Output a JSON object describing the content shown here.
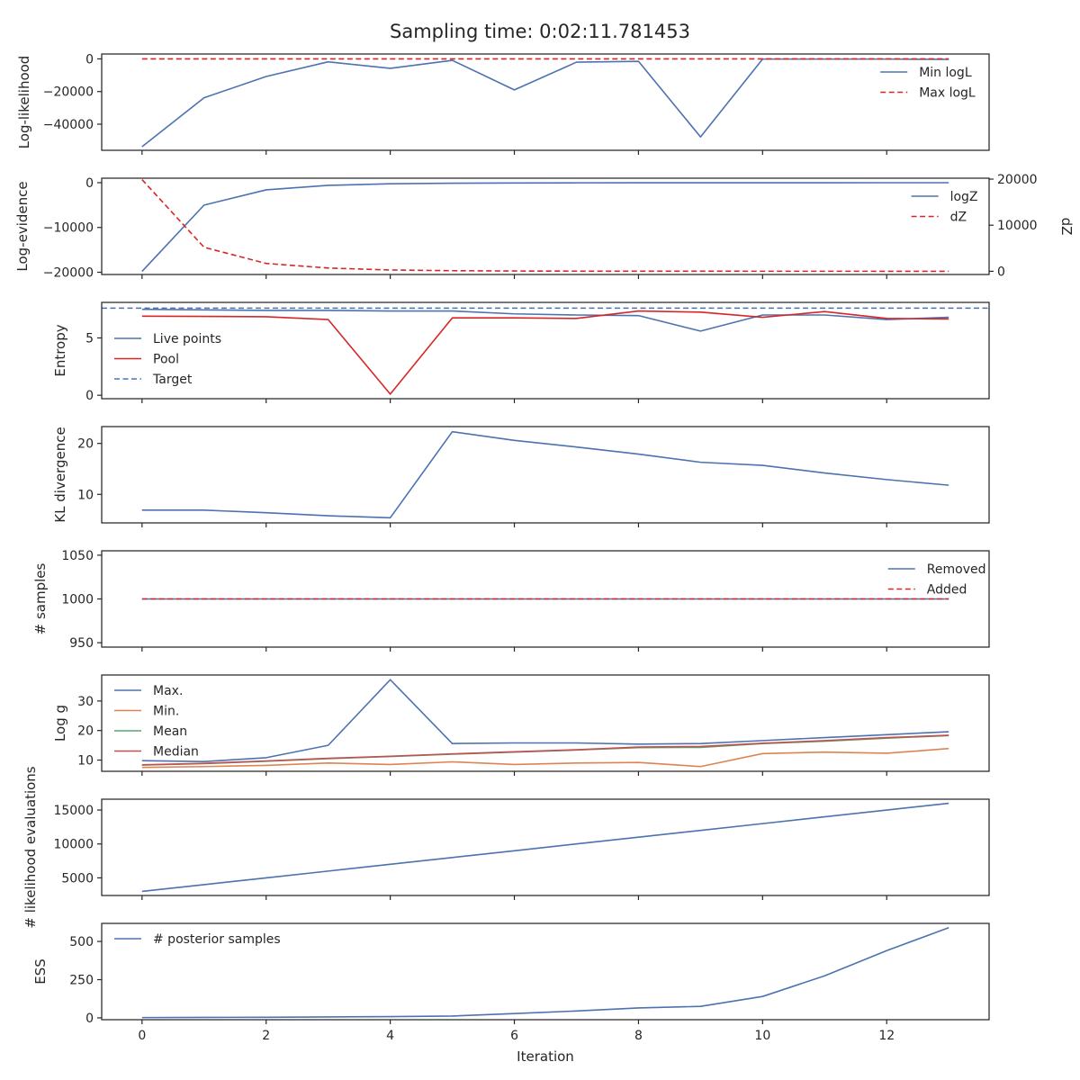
{
  "title": "Sampling time: 0:02:11.781453",
  "colors": {
    "blue": "#4c72b0",
    "red": "#d62728",
    "orange": "#dd8452",
    "green": "#55a868",
    "median_red": "#c44e52",
    "text": "#262626"
  },
  "chart_data": {
    "type": "line",
    "xlabel": "Iteration",
    "xlim": [
      -0.65,
      13.65
    ],
    "xticks": [
      0,
      2,
      4,
      6,
      8,
      10,
      12
    ],
    "x": [
      0,
      1,
      2,
      3,
      4,
      5,
      6,
      7,
      8,
      9,
      10,
      11,
      12,
      13
    ],
    "panels": [
      {
        "ylabel": "Log-likelihood",
        "ylim": [
          -56000,
          3000
        ],
        "yticks": [
          0,
          -20000,
          -40000
        ],
        "ytick_labels": [
          "0",
          "−20000",
          "−40000"
        ],
        "legend_position": "upper-right",
        "series": [
          {
            "name": "Min logL",
            "style": "solid",
            "color": "#4c72b0",
            "values": [
              -53800,
              -23800,
              -10800,
              -1800,
              -5800,
              -900,
              -19000,
              -2000,
              -1500,
              -47800,
              -100,
              -100,
              -100,
              -300
            ]
          },
          {
            "name": "Max logL",
            "style": "dashed",
            "color": "#d62728",
            "values": [
              0,
              0,
              0,
              0,
              0,
              0,
              0,
              0,
              0,
              0,
              0,
              0,
              0,
              0
            ]
          }
        ]
      },
      {
        "ylabel": "Log-evidence",
        "ylim": [
          -20500,
          1000
        ],
        "yticks": [
          0,
          -10000,
          -20000
        ],
        "ytick_labels": [
          "0",
          "−10000",
          "−20000"
        ],
        "y2label": "dZ",
        "y2lim": [
          -700,
          20200
        ],
        "y2ticks": [
          0,
          10000,
          20000
        ],
        "y2tick_labels": [
          "0",
          "10000",
          "20000"
        ],
        "legend_position": "upper-right",
        "series": [
          {
            "name": "logZ",
            "style": "solid",
            "color": "#4c72b0",
            "axis": "left",
            "values": [
              -19800,
              -5000,
              -1600,
              -600,
              -250,
              -120,
              -60,
              -30,
              -20,
              -15,
              -10,
              -8,
              -6,
              -5
            ]
          },
          {
            "name": "dZ",
            "style": "dashed",
            "color": "#d62728",
            "axis": "right",
            "values": [
              19900,
              5200,
              1700,
              700,
              280,
              130,
              60,
              30,
              20,
              15,
              10,
              8,
              6,
              5
            ]
          }
        ]
      },
      {
        "ylabel": "Entropy",
        "ylim": [
          -0.3,
          8.1
        ],
        "yticks": [
          0,
          5
        ],
        "ytick_labels": [
          "0",
          "5"
        ],
        "legend_position": "middle-left",
        "series": [
          {
            "name": "Live points",
            "style": "solid",
            "color": "#4c72b0",
            "values": [
              7.5,
              7.45,
              7.4,
              7.4,
              7.35,
              7.35,
              7.1,
              7.0,
              6.95,
              5.6,
              7.0,
              7.0,
              6.6,
              6.8
            ]
          },
          {
            "name": "Pool",
            "style": "solid",
            "color": "#d62728",
            "values": [
              6.9,
              6.88,
              6.85,
              6.6,
              0.1,
              6.75,
              6.75,
              6.7,
              7.35,
              7.25,
              6.8,
              7.3,
              6.7,
              6.65
            ]
          },
          {
            "name": "Target",
            "style": "dashed",
            "color": "#4c72b0",
            "constant": 7.6
          }
        ]
      },
      {
        "ylabel": "KL divergence",
        "ylim": [
          4.4,
          23.3
        ],
        "yticks": [
          10,
          20
        ],
        "ytick_labels": [
          "10",
          "20"
        ],
        "legend_position": "none",
        "series": [
          {
            "name": "",
            "style": "solid",
            "color": "#4c72b0",
            "values": [
              6.9,
              6.9,
              6.4,
              5.8,
              5.4,
              22.3,
              20.6,
              19.3,
              17.9,
              16.3,
              15.7,
              14.2,
              12.9,
              11.8
            ]
          }
        ]
      },
      {
        "ylabel": "# samples",
        "ylim": [
          945,
          1055
        ],
        "yticks": [
          950,
          1000,
          1050
        ],
        "ytick_labels": [
          "950",
          "1000",
          "1050"
        ],
        "legend_position": "upper-right",
        "series": [
          {
            "name": "Removed",
            "style": "solid",
            "color": "#4c72b0",
            "values": [
              1000,
              1000,
              1000,
              1000,
              1000,
              1000,
              1000,
              1000,
              1000,
              1000,
              1000,
              1000,
              1000,
              1000
            ]
          },
          {
            "name": "Added",
            "style": "dashed",
            "color": "#d62728",
            "values": [
              1000,
              1000,
              1000,
              1000,
              1000,
              1000,
              1000,
              1000,
              1000,
              1000,
              1000,
              1000,
              1000,
              1000
            ]
          }
        ]
      },
      {
        "ylabel": "Log g",
        "ylim": [
          6.2,
          38.8
        ],
        "yticks": [
          10,
          20,
          30
        ],
        "ytick_labels": [
          "10",
          "20",
          "30"
        ],
        "legend_position": "upper-left",
        "series": [
          {
            "name": "Max.",
            "style": "solid",
            "color": "#4c72b0",
            "values": [
              9.8,
              9.5,
              10.8,
              15.0,
              37.2,
              15.6,
              15.8,
              15.8,
              15.4,
              15.6,
              16.6,
              17.6,
              18.6,
              19.6
            ]
          },
          {
            "name": "Min.",
            "style": "solid",
            "color": "#dd8452",
            "values": [
              7.5,
              7.8,
              8.2,
              9.0,
              8.5,
              9.4,
              8.5,
              9.0,
              9.2,
              7.8,
              12.2,
              12.7,
              12.3,
              13.9
            ]
          },
          {
            "name": "Mean",
            "style": "solid",
            "color": "#55a868",
            "values": [
              8.3,
              8.8,
              9.6,
              10.5,
              11.2,
              12.0,
              12.7,
              13.4,
              14.2,
              14.3,
              15.6,
              16.4,
              17.4,
              18.3
            ]
          },
          {
            "name": "Median",
            "style": "solid",
            "color": "#c44e52",
            "values": [
              8.4,
              8.9,
              9.7,
              10.6,
              11.3,
              12.1,
              12.8,
              13.5,
              14.4,
              14.6,
              15.7,
              16.6,
              17.6,
              18.4
            ]
          }
        ]
      },
      {
        "ylabel": "# likelihood evaluations",
        "ylim": [
          2400,
          16600
        ],
        "yticks": [
          5000,
          10000,
          15000
        ],
        "ytick_labels": [
          "5000",
          "10000",
          "15000"
        ],
        "legend_position": "none",
        "series": [
          {
            "name": "",
            "style": "solid",
            "color": "#4c72b0",
            "values": [
              3000,
              4000,
              5000,
              6000,
              7000,
              8000,
              9000,
              10000,
              11000,
              12000,
              13000,
              14000,
              15000,
              16000
            ]
          }
        ]
      },
      {
        "ylabel": "ESS",
        "ylim": [
          -12,
          618
        ],
        "yticks": [
          0,
          250,
          500
        ],
        "ytick_labels": [
          "0",
          "250",
          "500"
        ],
        "legend_position": "upper-left",
        "series": [
          {
            "name": "# posterior samples",
            "style": "solid",
            "color": "#4c72b0",
            "values": [
              2,
              3,
              4,
              6,
              8,
              12,
              28,
              45,
              65,
              75,
              140,
              275,
              440,
              590
            ]
          }
        ]
      }
    ]
  }
}
